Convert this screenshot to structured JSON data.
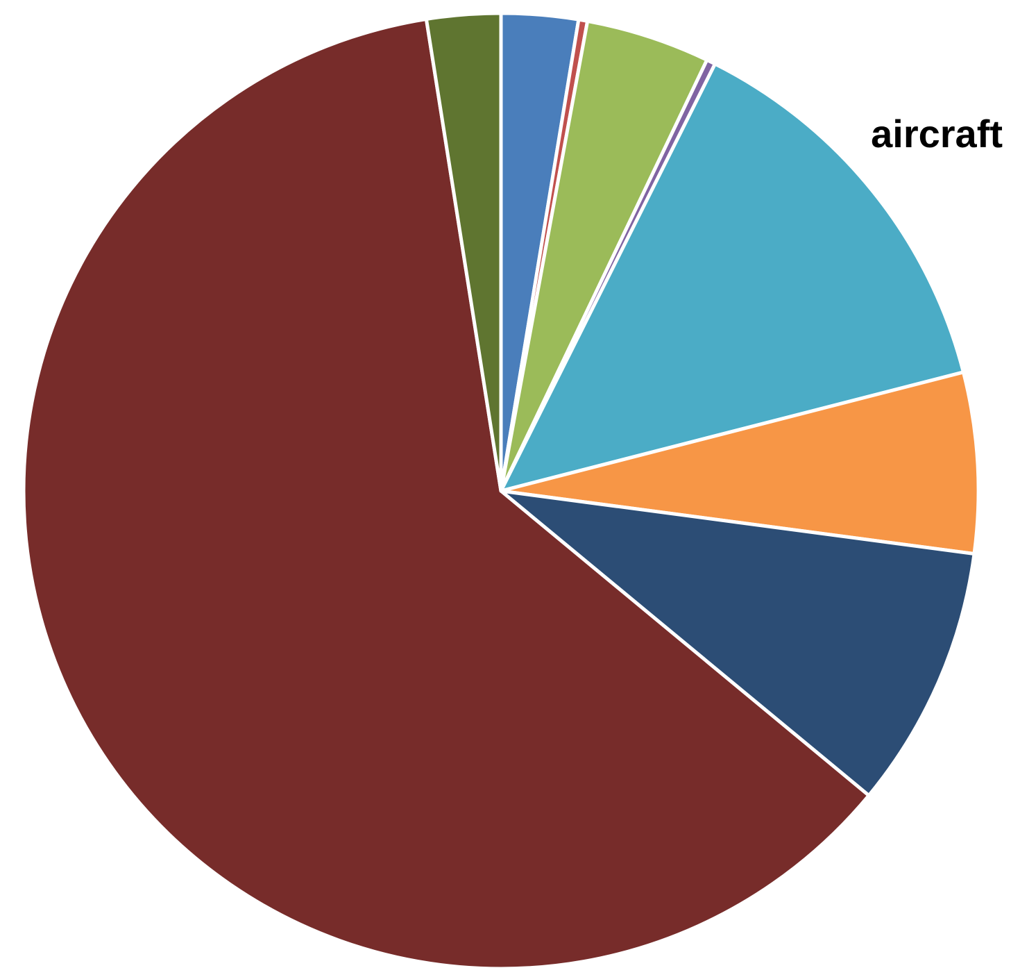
{
  "chart_data": {
    "type": "pie",
    "title": "",
    "start_angle_deg": 0,
    "direction": "clockwise",
    "legend": "none",
    "labels": [
      "",
      "",
      "",
      "",
      "aircraft",
      "",
      "",
      "",
      ""
    ],
    "values": [
      2.6,
      0.3,
      4.2,
      0.3,
      13.6,
      6.1,
      8.9,
      61.5,
      2.5
    ],
    "colors": [
      "#4a7ebb",
      "#c0504d",
      "#9bbb59",
      "#8064a2",
      "#4bacc6",
      "#f79646",
      "#2c4d75",
      "#772c2a",
      "#5f7530"
    ]
  }
}
